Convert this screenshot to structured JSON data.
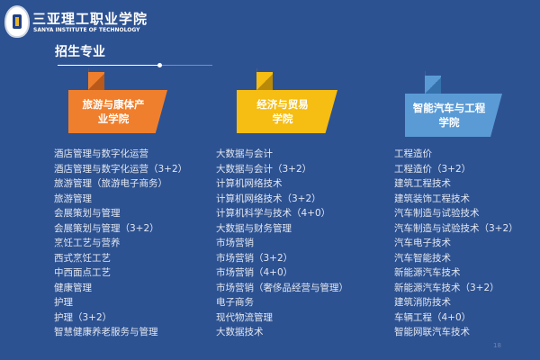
{
  "header": {
    "school_cn": "三亚理工职业学院",
    "school_en": "SANYA INSTITUTE OF TECHNOLOGY",
    "title": "招生专业"
  },
  "colleges": [
    {
      "name": "旅游与康体产业学院",
      "color": "#ef7f2d",
      "items": [
        "酒店管理与数字化运营",
        "酒店管理与数字化运营（3+2）",
        "旅游管理（旅游电子商务）",
        "旅游管理",
        "会展策划与管理",
        "会展策划与管理（3+2）",
        "烹饪工艺与营养",
        "西式烹饪工艺",
        "中西面点工艺",
        "健康管理",
        "护理",
        "护理（3+2）",
        "智慧健康养老服务与管理"
      ]
    },
    {
      "name": "经济与贸易学院",
      "color": "#f6bd12",
      "items": [
        "大数据与会计",
        "大数据与会计（3+2）",
        "计算机网络技术",
        "计算机网络技术（3+2）",
        "计算机科学与技术（4+0）",
        "大数据与财务管理",
        "市场营销",
        "市场营销（3+2）",
        "市场营销（4+0）",
        "市场营销（奢侈品经营与管理）",
        "电子商务",
        "现代物流管理",
        "大数据技术"
      ]
    },
    {
      "name": "智能汽车与工程学院",
      "color": "#5a9bd6",
      "items": [
        "工程造价",
        "工程造价（3+2）",
        "建筑工程技术",
        "建筑装饰工程技术",
        "汽车制造与试验技术",
        "汽车制造与试验技术（3+2）",
        "汽车电子技术",
        "汽车智能技术",
        "新能源汽车技术",
        "新能源汽车技术（3+2）",
        "建筑消防技术",
        "车辆工程（4+0）",
        "智能网联汽车技术"
      ]
    }
  ],
  "page_number": "18"
}
